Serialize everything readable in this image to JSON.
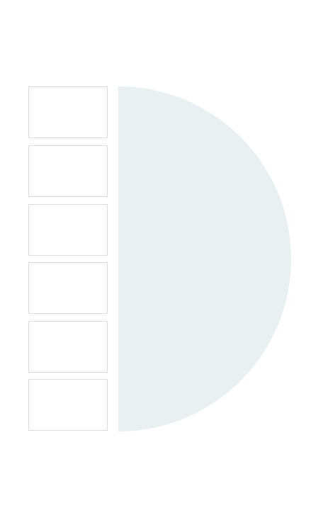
{
  "slots": [
    {
      "label": ""
    },
    {
      "label": ""
    },
    {
      "label": ""
    },
    {
      "label": ""
    },
    {
      "label": ""
    },
    {
      "label": ""
    }
  ],
  "colors": {
    "background": "#ffffff",
    "slot_border": "#d9dde0",
    "half_disc_fill": "#e8f0f2"
  }
}
